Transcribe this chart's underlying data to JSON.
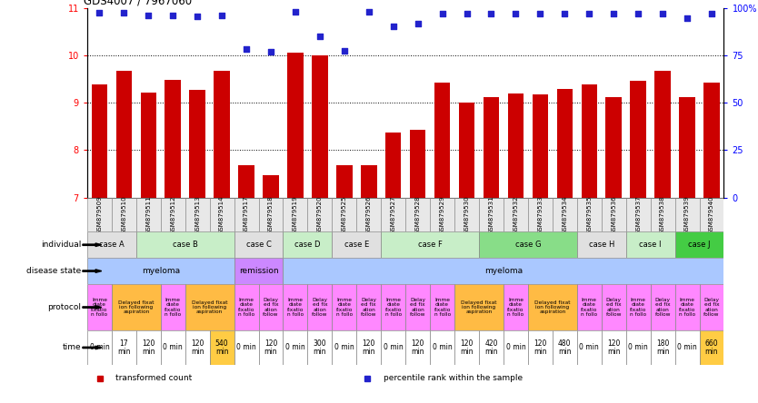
{
  "title": "GDS4007 / 7967060",
  "samples": [
    "GSM879509",
    "GSM879510",
    "GSM879511",
    "GSM879512",
    "GSM879513",
    "GSM879514",
    "GSM879517",
    "GSM879518",
    "GSM879519",
    "GSM879520",
    "GSM879525",
    "GSM879526",
    "GSM879527",
    "GSM879528",
    "GSM879529",
    "GSM879530",
    "GSM879531",
    "GSM879532",
    "GSM879533",
    "GSM879534",
    "GSM879535",
    "GSM879536",
    "GSM879537",
    "GSM879538",
    "GSM879539",
    "GSM879540"
  ],
  "bar_values": [
    9.38,
    9.67,
    9.22,
    9.49,
    9.28,
    9.67,
    7.68,
    7.47,
    10.05,
    10.0,
    7.68,
    7.68,
    8.38,
    8.42,
    9.42,
    9.0,
    9.12,
    9.2,
    9.18,
    9.3,
    9.38,
    9.12,
    9.46,
    9.68,
    9.12,
    9.42
  ],
  "dot_values": [
    10.9,
    10.9,
    10.85,
    10.85,
    10.82,
    10.85,
    10.13,
    10.08,
    10.93,
    10.4,
    10.09,
    10.93,
    10.62,
    10.67,
    10.88,
    10.88,
    10.88,
    10.88,
    10.88,
    10.88,
    10.88,
    10.88,
    10.88,
    10.88,
    10.78,
    10.88
  ],
  "ymin": 7.0,
  "ymax": 11.0,
  "yticks": [
    7,
    8,
    9,
    10,
    11
  ],
  "right_yticks_labels": [
    "0",
    "25",
    "50",
    "75",
    "100%"
  ],
  "right_yticks_pos": [
    7,
    8,
    9,
    10,
    11
  ],
  "bar_color": "#cc0000",
  "dot_color": "#2222cc",
  "individual_cases": [
    {
      "label": "case A",
      "start": 0,
      "end": 2,
      "color": "#e0e0e0"
    },
    {
      "label": "case B",
      "start": 2,
      "end": 6,
      "color": "#c8eec8"
    },
    {
      "label": "case C",
      "start": 6,
      "end": 8,
      "color": "#e0e0e0"
    },
    {
      "label": "case D",
      "start": 8,
      "end": 10,
      "color": "#c8eec8"
    },
    {
      "label": "case E",
      "start": 10,
      "end": 12,
      "color": "#e0e0e0"
    },
    {
      "label": "case F",
      "start": 12,
      "end": 16,
      "color": "#c8eec8"
    },
    {
      "label": "case G",
      "start": 16,
      "end": 20,
      "color": "#88dd88"
    },
    {
      "label": "case H",
      "start": 20,
      "end": 22,
      "color": "#e0e0e0"
    },
    {
      "label": "case I",
      "start": 22,
      "end": 24,
      "color": "#c8eec8"
    },
    {
      "label": "case J",
      "start": 24,
      "end": 26,
      "color": "#44cc44"
    }
  ],
  "disease_spans": [
    {
      "label": "myeloma",
      "start": 0,
      "end": 6,
      "color": "#aac8ff"
    },
    {
      "label": "remission",
      "start": 6,
      "end": 8,
      "color": "#cc88ff"
    },
    {
      "label": "myeloma",
      "start": 8,
      "end": 26,
      "color": "#aac8ff"
    }
  ],
  "protocol_cells": [
    {
      "label": "Imme\ndiate\nfixatio\nn follo",
      "color": "#ff88ff",
      "start": 0,
      "end": 1
    },
    {
      "label": "Delayed fixat\nion following\naspiration",
      "color": "#ffbb44",
      "start": 1,
      "end": 3
    },
    {
      "label": "Imme\ndiate\nfixatio\nn follo",
      "color": "#ff88ff",
      "start": 3,
      "end": 4
    },
    {
      "label": "Delayed fixat\nion following\naspiration",
      "color": "#ffbb44",
      "start": 4,
      "end": 6
    },
    {
      "label": "Imme\ndiate\nfixatio\nn follo",
      "color": "#ff88ff",
      "start": 6,
      "end": 7
    },
    {
      "label": "Delay\ned fix\nation\nfollow",
      "color": "#ff88ff",
      "start": 7,
      "end": 8
    },
    {
      "label": "Imme\ndiate\nfixatio\nn follo",
      "color": "#ff88ff",
      "start": 8,
      "end": 9
    },
    {
      "label": "Delay\ned fix\nation\nfollow",
      "color": "#ff88ff",
      "start": 9,
      "end": 10
    },
    {
      "label": "Imme\ndiate\nfixatio\nn follo",
      "color": "#ff88ff",
      "start": 10,
      "end": 11
    },
    {
      "label": "Delay\ned fix\nation\nfollow",
      "color": "#ff88ff",
      "start": 11,
      "end": 12
    },
    {
      "label": "Imme\ndiate\nfixatio\nn follo",
      "color": "#ff88ff",
      "start": 12,
      "end": 13
    },
    {
      "label": "Delay\ned fix\nation\nfollow",
      "color": "#ff88ff",
      "start": 13,
      "end": 14
    },
    {
      "label": "Imme\ndiate\nfixatio\nn follo",
      "color": "#ff88ff",
      "start": 14,
      "end": 15
    },
    {
      "label": "Delayed fixat\nion following\naspiration",
      "color": "#ffbb44",
      "start": 15,
      "end": 17
    },
    {
      "label": "Imme\ndiate\nfixatio\nn follo",
      "color": "#ff88ff",
      "start": 17,
      "end": 18
    },
    {
      "label": "Delayed fixat\nion following\naspiration",
      "color": "#ffbb44",
      "start": 18,
      "end": 20
    },
    {
      "label": "Imme\ndiate\nfixatio\nn follo",
      "color": "#ff88ff",
      "start": 20,
      "end": 21
    },
    {
      "label": "Delay\ned fix\nation\nfollow",
      "color": "#ff88ff",
      "start": 21,
      "end": 22
    },
    {
      "label": "Imme\ndiate\nfixatio\nn follo",
      "color": "#ff88ff",
      "start": 22,
      "end": 23
    },
    {
      "label": "Delay\ned fix\nation\nfollow",
      "color": "#ff88ff",
      "start": 23,
      "end": 24
    },
    {
      "label": "Imme\ndiate\nfixatio\nn follo",
      "color": "#ff88ff",
      "start": 24,
      "end": 25
    },
    {
      "label": "Delay\ned fix\nation\nfollow",
      "color": "#ff88ff",
      "start": 25,
      "end": 26
    }
  ],
  "time_cells": [
    {
      "label": "0 min",
      "color": "#ffffff",
      "start": 0,
      "end": 1
    },
    {
      "label": "17\nmin",
      "color": "#ffffff",
      "start": 1,
      "end": 2
    },
    {
      "label": "120\nmin",
      "color": "#ffffff",
      "start": 2,
      "end": 3
    },
    {
      "label": "0 min",
      "color": "#ffffff",
      "start": 3,
      "end": 4
    },
    {
      "label": "120\nmin",
      "color": "#ffffff",
      "start": 4,
      "end": 5
    },
    {
      "label": "540\nmin",
      "color": "#ffcc44",
      "start": 5,
      "end": 6
    },
    {
      "label": "0 min",
      "color": "#ffffff",
      "start": 6,
      "end": 7
    },
    {
      "label": "120\nmin",
      "color": "#ffffff",
      "start": 7,
      "end": 8
    },
    {
      "label": "0 min",
      "color": "#ffffff",
      "start": 8,
      "end": 9
    },
    {
      "label": "300\nmin",
      "color": "#ffffff",
      "start": 9,
      "end": 10
    },
    {
      "label": "0 min",
      "color": "#ffffff",
      "start": 10,
      "end": 11
    },
    {
      "label": "120\nmin",
      "color": "#ffffff",
      "start": 11,
      "end": 12
    },
    {
      "label": "0 min",
      "color": "#ffffff",
      "start": 12,
      "end": 13
    },
    {
      "label": "120\nmin",
      "color": "#ffffff",
      "start": 13,
      "end": 14
    },
    {
      "label": "0 min",
      "color": "#ffffff",
      "start": 14,
      "end": 15
    },
    {
      "label": "120\nmin",
      "color": "#ffffff",
      "start": 15,
      "end": 16
    },
    {
      "label": "420\nmin",
      "color": "#ffffff",
      "start": 16,
      "end": 17
    },
    {
      "label": "0 min",
      "color": "#ffffff",
      "start": 17,
      "end": 18
    },
    {
      "label": "120\nmin",
      "color": "#ffffff",
      "start": 18,
      "end": 19
    },
    {
      "label": "480\nmin",
      "color": "#ffffff",
      "start": 19,
      "end": 20
    },
    {
      "label": "0 min",
      "color": "#ffffff",
      "start": 20,
      "end": 21
    },
    {
      "label": "120\nmin",
      "color": "#ffffff",
      "start": 21,
      "end": 22
    },
    {
      "label": "0 min",
      "color": "#ffffff",
      "start": 22,
      "end": 23
    },
    {
      "label": "180\nmin",
      "color": "#ffffff",
      "start": 23,
      "end": 24
    },
    {
      "label": "0 min",
      "color": "#ffffff",
      "start": 24,
      "end": 25
    },
    {
      "label": "660\nmin",
      "color": "#ffcc44",
      "start": 25,
      "end": 26
    }
  ],
  "row_labels": [
    "individual",
    "disease state",
    "protocol",
    "time"
  ],
  "legend": [
    {
      "label": "transformed count",
      "color": "#cc0000"
    },
    {
      "label": "percentile rank within the sample",
      "color": "#2222cc"
    }
  ]
}
